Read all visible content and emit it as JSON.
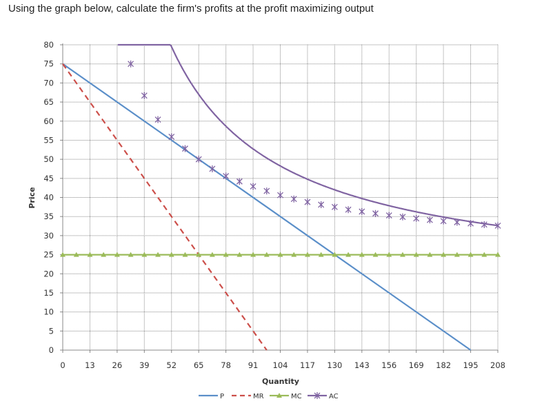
{
  "question": "Using the graph below, calculate the firm's profits at the profit maximizing output",
  "chart_data": {
    "type": "line",
    "xlabel": "Quantity",
    "ylabel": "Price",
    "xlim": [
      0,
      208
    ],
    "ylim": [
      0,
      80
    ],
    "x_ticks": [
      0,
      13,
      26,
      39,
      52,
      65,
      78,
      91,
      104,
      117,
      130,
      143,
      156,
      169,
      182,
      195,
      208
    ],
    "y_ticks": [
      0,
      5,
      10,
      15,
      20,
      25,
      30,
      35,
      40,
      45,
      50,
      55,
      60,
      65,
      70,
      75,
      80
    ],
    "grid": true,
    "legend_position": "bottom",
    "series": [
      {
        "name": "P",
        "color": "#5b8fc9",
        "style": "solid",
        "marker": "none",
        "x": [
          0,
          195
        ],
        "y": [
          75,
          0
        ]
      },
      {
        "name": "MR",
        "color": "#cc4f4a",
        "style": "dashed",
        "marker": "none",
        "x": [
          0,
          97.5
        ],
        "y": [
          75,
          0
        ]
      },
      {
        "name": "MC",
        "color": "#9bbb59",
        "style": "solid",
        "marker": "triangle",
        "x": [
          0,
          6.5,
          13,
          19.5,
          26,
          32.5,
          39,
          45.5,
          52,
          58.5,
          65,
          71.5,
          78,
          84.5,
          91,
          97.5,
          104,
          110.5,
          117,
          123.5,
          130,
          136.5,
          143,
          149.5,
          156,
          162.5,
          169,
          175.5,
          182,
          188.5,
          195,
          201.5,
          208
        ],
        "y": [
          25,
          25,
          25,
          25,
          25,
          25,
          25,
          25,
          25,
          25,
          25,
          25,
          25,
          25,
          25,
          25,
          25,
          25,
          25,
          25,
          25,
          25,
          25,
          25,
          25,
          25,
          25,
          25,
          25,
          25,
          25,
          25,
          25
        ]
      },
      {
        "name": "AC",
        "color": "#8064a2",
        "style": "solid",
        "marker": "x",
        "x": [
          32.5,
          39,
          45.5,
          52,
          58.5,
          65,
          71.5,
          78,
          84.5,
          91,
          97.5,
          104,
          110.5,
          117,
          123.5,
          130,
          136.5,
          143,
          149.5,
          156,
          162.5,
          169,
          175.5,
          182,
          188.5,
          195,
          201.5,
          208
        ],
        "y": [
          75,
          66.7,
          60.4,
          55.9,
          52.8,
          50,
          47.5,
          45.6,
          44.2,
          42.9,
          41.7,
          40.6,
          39.6,
          38.8,
          38.1,
          37.5,
          36.8,
          36.3,
          35.8,
          35.3,
          34.9,
          34.5,
          34.1,
          33.8,
          33.5,
          33.2,
          32.9,
          32.6
        ]
      }
    ]
  }
}
